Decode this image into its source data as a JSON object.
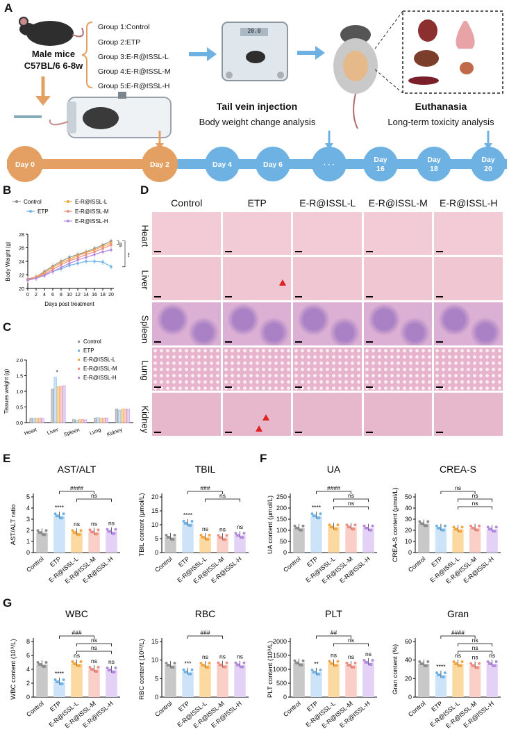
{
  "panel_letters": {
    "a": "A",
    "b": "B",
    "c": "C",
    "d": "D",
    "e": "E",
    "f": "F",
    "g": "G"
  },
  "panel_a": {
    "mouse_title": "Male mice",
    "mouse_sub": "C57BL/6  6-8w",
    "groups": [
      "Group 1:Control",
      "Group 2:ETP",
      "Group 3:E-R@ISSL-L",
      "Group 4:E-R@ISSL-M",
      "Group 5:E-R@ISSL-H"
    ],
    "scale_reading": "20.0",
    "injection_title": "Tail vein injection",
    "injection_sub": "Body weight change analysis",
    "euth_title": "Euthanasia",
    "euth_sub": "Long-term toxicity analysis",
    "timeline": [
      "Day 0",
      "Day 2",
      "Day 4",
      "Day 6",
      "· · ·",
      "Day 16",
      "Day 18",
      "Day 20"
    ],
    "colors": {
      "orange": "#E4A062",
      "blue": "#6EB2E4"
    }
  },
  "groups": [
    "Control",
    "ETP",
    "E-R@ISSL-L",
    "E-R@ISSL-M",
    "E-R@ISSL-H"
  ],
  "colors": {
    "Control": "#8E8E8E",
    "ETP": "#6FB3E8",
    "E-R@ISSL-L": "#F5A640",
    "E-R@ISSL-M": "#F08C80",
    "E-R@ISSL-H": "#B48AE0"
  },
  "bar_fill": {
    "Control": "#C8C8C8",
    "ETP": "#CDE4F8",
    "E-R@ISSL-L": "#FCD9A0",
    "E-R@ISSL-M": "#F9CFC8",
    "E-R@ISSL-H": "#E3D2F6"
  },
  "panel_d": {
    "columns": [
      "Control",
      "ETP",
      "E-R@ISSL-L",
      "E-R@ISSL-M",
      "E-R@ISSL-H"
    ],
    "rows": [
      "Heart",
      "Liver",
      "Spleen",
      "Lung",
      "Kidney"
    ]
  },
  "chart_data": [
    {
      "id": "B",
      "type": "line",
      "ylabel": "Body Weight (g)",
      "xlabel": "Days post treatment",
      "x": [
        0,
        2,
        4,
        6,
        8,
        10,
        12,
        14,
        16,
        18,
        20
      ],
      "ylim": [
        20,
        28
      ],
      "yticks": [
        20,
        22,
        24,
        26,
        28
      ],
      "series": [
        {
          "name": "Control",
          "values": [
            21.4,
            21.7,
            22.5,
            23.3,
            24.0,
            24.6,
            25.0,
            25.4,
            25.9,
            26.4,
            27.0
          ]
        },
        {
          "name": "ETP",
          "values": [
            21.3,
            21.5,
            22.0,
            22.5,
            22.9,
            23.4,
            23.7,
            24.0,
            24.0,
            23.9,
            23.2
          ]
        },
        {
          "name": "E-R@ISSL-L",
          "values": [
            21.3,
            21.7,
            22.3,
            23.1,
            23.8,
            24.3,
            24.8,
            25.3,
            25.7,
            26.2,
            26.7
          ]
        },
        {
          "name": "E-R@ISSL-M",
          "values": [
            21.3,
            21.6,
            22.1,
            22.8,
            23.5,
            24.1,
            24.5,
            25.0,
            25.4,
            25.9,
            26.4
          ]
        },
        {
          "name": "E-R@ISSL-H",
          "values": [
            21.2,
            21.5,
            21.9,
            22.5,
            23.1,
            23.7,
            24.2,
            24.6,
            25.0,
            25.4,
            25.7
          ]
        }
      ],
      "annotations": [
        "ns",
        "***"
      ]
    },
    {
      "id": "C",
      "type": "bar",
      "ylabel": "Tissues weight (g)",
      "categories": [
        "Heart",
        "Liver",
        "Spleen",
        "Lung",
        "Kidney"
      ],
      "ylim": [
        0,
        2.0
      ],
      "yticks": [
        "0.0",
        "0.5",
        "1.0",
        "1.5",
        "2.0"
      ],
      "series": [
        {
          "name": "Control",
          "values": [
            0.14,
            1.07,
            0.1,
            0.15,
            0.44
          ]
        },
        {
          "name": "ETP",
          "values": [
            0.14,
            1.45,
            0.08,
            0.16,
            0.4
          ]
        },
        {
          "name": "E-R@ISSL-L",
          "values": [
            0.14,
            1.15,
            0.1,
            0.14,
            0.43
          ]
        },
        {
          "name": "E-R@ISSL-M",
          "values": [
            0.15,
            1.16,
            0.1,
            0.15,
            0.44
          ]
        },
        {
          "name": "E-R@ISSL-H",
          "values": [
            0.14,
            1.18,
            0.09,
            0.15,
            0.43
          ]
        }
      ],
      "annotations": [
        "*"
      ]
    },
    {
      "id": "E1",
      "type": "bar",
      "title": "AST/ALT",
      "ylabel": "AST/ALT ratio",
      "categories": [
        "Control",
        "ETP",
        "E-R@ISSL-L",
        "E-R@ISSL-M",
        "E-R@ISSL-H"
      ],
      "values": [
        1.8,
        3.3,
        1.8,
        1.85,
        1.9
      ],
      "ylim": [
        0,
        5
      ],
      "yticks": [
        "0",
        "1",
        "2",
        "3",
        "4",
        "5"
      ],
      "marks": [
        "",
        "****",
        "ns",
        "ns",
        "ns"
      ],
      "brackets": [
        "####",
        "ns"
      ]
    },
    {
      "id": "E2",
      "type": "bar",
      "title": "TBIL",
      "ylabel": "TBIL content (μmol/L)",
      "categories": [
        "Control",
        "ETP",
        "E-R@ISSL-L",
        "E-R@ISSL-M",
        "E-R@ISSL-H"
      ],
      "values": [
        5.5,
        10.5,
        5.5,
        5.4,
        6.2
      ],
      "ylim": [
        0,
        20
      ],
      "yticks": [
        "0",
        "5",
        "10",
        "15",
        "20"
      ],
      "marks": [
        "",
        "****",
        "ns",
        "ns",
        "ns"
      ],
      "brackets": [
        "###",
        "ns"
      ]
    },
    {
      "id": "F1",
      "type": "bar",
      "title": "UA",
      "ylabel": "UA content (μmol/L)",
      "categories": [
        "Control",
        "ETP",
        "E-R@ISSL-L",
        "E-R@ISSL-M",
        "E-R@ISSL-H"
      ],
      "values": [
        110,
        165,
        115,
        115,
        110
      ],
      "ylim": [
        0,
        250
      ],
      "yticks": [
        "0",
        "50",
        "100",
        "150",
        "200",
        "250"
      ],
      "marks": [
        "",
        "****",
        "",
        "",
        ""
      ],
      "brackets": [
        "####",
        "ns",
        "ns"
      ]
    },
    {
      "id": "F2",
      "type": "bar",
      "title": "CREA-S",
      "ylabel": "CREA-S content (μmol/L)",
      "categories": [
        "Control",
        "ETP",
        "E-R@ISSL-L",
        "E-R@ISSL-M",
        "E-R@ISSL-H"
      ],
      "values": [
        26,
        22,
        21,
        22,
        21
      ],
      "ylim": [
        0,
        50
      ],
      "yticks": [
        "0",
        "10",
        "20",
        "30",
        "40",
        "50"
      ],
      "marks": [
        "",
        "",
        "",
        "",
        ""
      ],
      "brackets": [
        "ns",
        "ns",
        "ns"
      ]
    },
    {
      "id": "G1",
      "type": "bar",
      "title": "WBC",
      "ylabel": "WBC content (10⁹/L)",
      "categories": [
        "Control",
        "ETP",
        "E-R@ISSL-L",
        "E-R@ISSL-M",
        "E-R@ISSL-H"
      ],
      "values": [
        4.7,
        2.2,
        4.8,
        4.0,
        3.9
      ],
      "ylim": [
        0,
        8
      ],
      "yticks": [
        "0",
        "2",
        "4",
        "6",
        "8"
      ],
      "marks": [
        "",
        "****",
        "ns",
        "ns",
        "ns"
      ],
      "brackets": [
        "###",
        "ns",
        "ns"
      ]
    },
    {
      "id": "G2",
      "type": "bar",
      "title": "RBC",
      "ylabel": "RBC content (10¹²/L)",
      "categories": [
        "Control",
        "ETP",
        "E-R@ISSL-L",
        "E-R@ISSL-M",
        "E-R@ISSL-H"
      ],
      "values": [
        8.6,
        6.8,
        8.6,
        8.7,
        8.7
      ],
      "ylim": [
        0,
        15
      ],
      "yticks": [
        "0",
        "5",
        "10",
        "15"
      ],
      "marks": [
        "",
        "***",
        "ns",
        "ns",
        "ns"
      ],
      "brackets": [
        "###"
      ]
    },
    {
      "id": "G3",
      "type": "bar",
      "title": "PLT",
      "ylabel": "PLT content (10⁹/L)",
      "categories": [
        "Control",
        "ETP",
        "E-R@ISSL-L",
        "E-R@ISSL-M",
        "E-R@ISSL-H"
      ],
      "values": [
        1230,
        900,
        1210,
        1150,
        1250
      ],
      "ylim": [
        0,
        2000
      ],
      "yticks": [
        "0",
        "500",
        "1000",
        "1500",
        "2000"
      ],
      "marks": [
        "",
        "**",
        "ns",
        "ns",
        "ns"
      ],
      "brackets": [
        "##",
        "ns"
      ]
    },
    {
      "id": "G4",
      "type": "bar",
      "title": "Gran",
      "ylabel": "Gran content (%)",
      "categories": [
        "Control",
        "ETP",
        "E-R@ISSL-L",
        "E-R@ISSL-M",
        "E-R@ISSL-H"
      ],
      "values": [
        36,
        24,
        36,
        34,
        36
      ],
      "ylim": [
        0,
        60
      ],
      "yticks": [
        "0",
        "20",
        "40",
        "60"
      ],
      "marks": [
        "",
        "****",
        "ns",
        "ns",
        "ns"
      ],
      "brackets": [
        "####",
        "ns",
        "ns"
      ]
    }
  ]
}
